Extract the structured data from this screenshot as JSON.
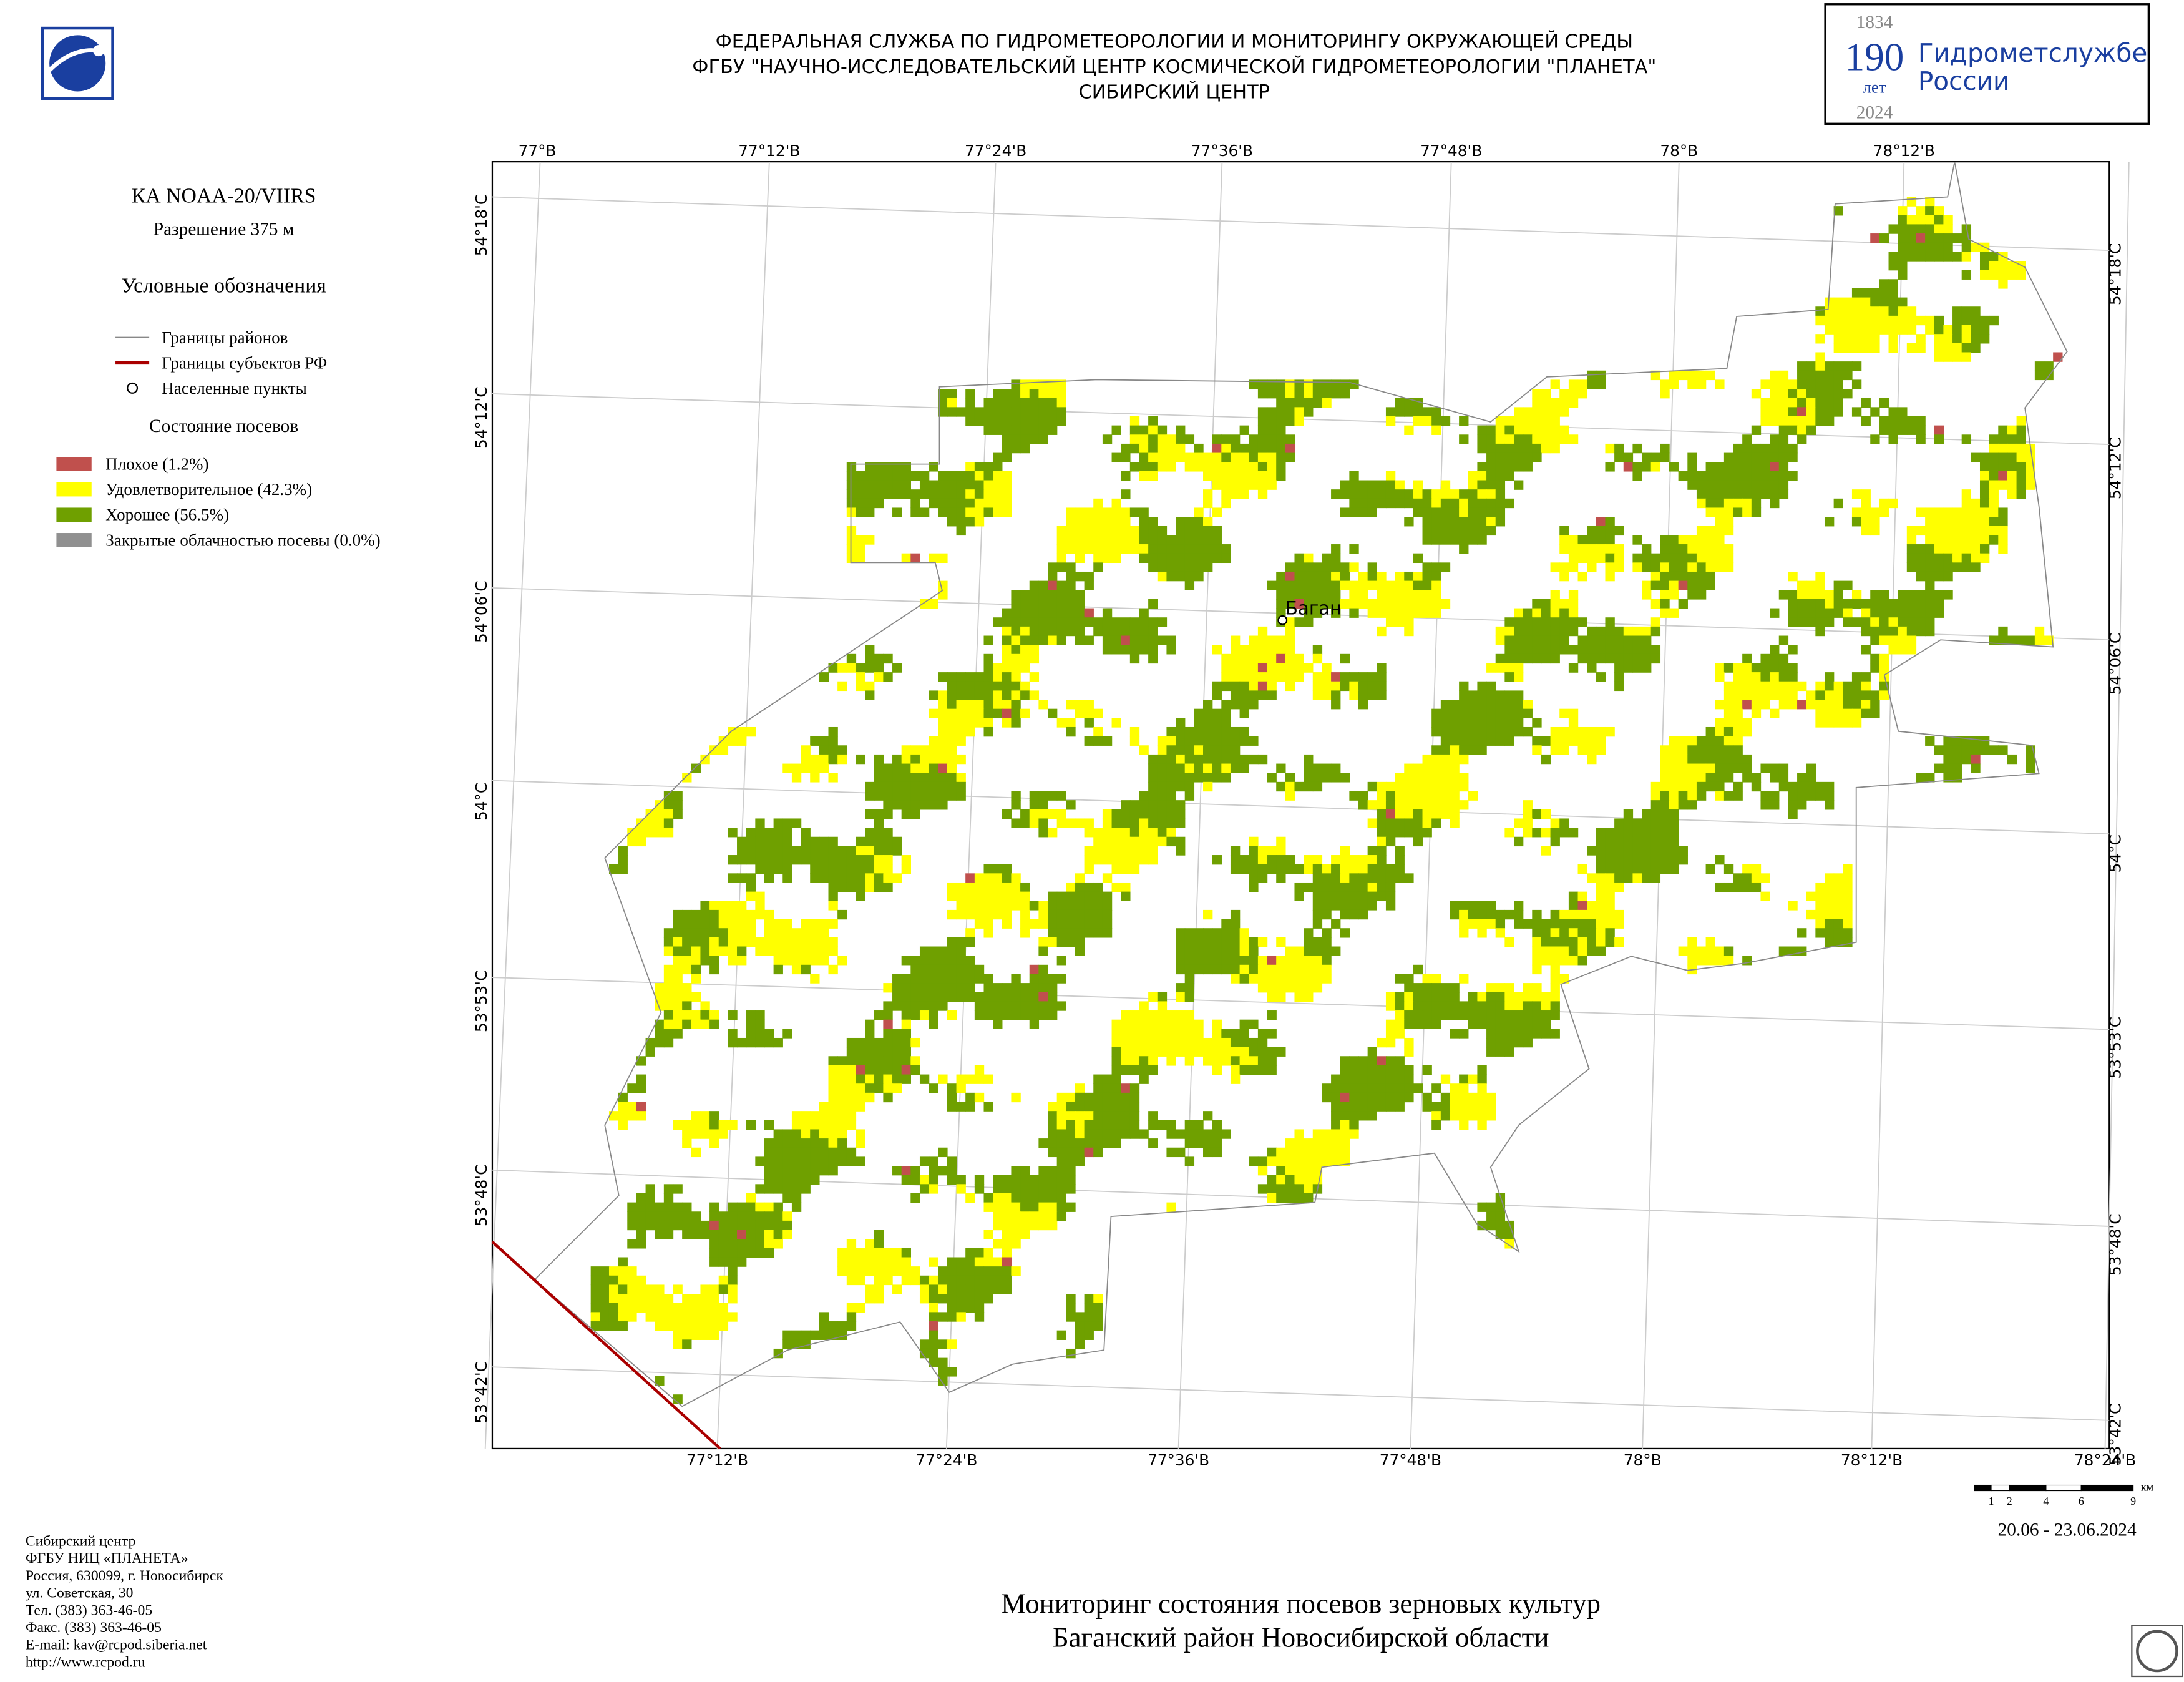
{
  "header": {
    "lines": [
      "ФЕДЕРАЛЬНАЯ СЛУЖБА ПО ГИДРОМЕТЕОРОЛОГИИ И МОНИТОРИНГУ ОКРУЖАЮЩЕЙ СРЕДЫ",
      "ФГБУ \"НАУЧНО-ИССЛЕДОВАТЕЛЬСКИЙ ЦЕНТР КОСМИЧЕСКОЙ ГИДРОМЕТЕОРОЛОГИИ \"ПЛАНЕТА\"",
      "СИБИРСКИЙ ЦЕНТР"
    ]
  },
  "anniversary": {
    "year_start": "1834",
    "number": "190",
    "word": "лет",
    "year_end": "2024",
    "name": [
      "Гидрометслужбе",
      "России"
    ]
  },
  "legend": {
    "satellite": "КА NOAA-20/VIIRS",
    "resolution": "Разрешение 375 м",
    "title": "Условные обозначения",
    "lines": [
      {
        "label": "Границы районов",
        "color": "#888888"
      },
      {
        "label": "Границы субъектов РФ",
        "color": "#aa0000"
      },
      {
        "label": "Населенные пункты",
        "color": "#000000"
      }
    ],
    "crop_title": "Состояние посевов",
    "crops": [
      {
        "label": "Плохое (1.2%)",
        "color": "#c0504d"
      },
      {
        "label": "Удовлетворительное (42.3%)",
        "color": "#ffff00"
      },
      {
        "label": "Хорошее (56.5%)",
        "color": "#6fa000"
      },
      {
        "label": "Закрытые облачностью посевы (0.0%)",
        "color": "#909090"
      }
    ]
  },
  "map": {
    "town": "Баган",
    "top_labels": [
      "77°В",
      "77°12'В",
      "77°24'В",
      "77°36'В",
      "77°48'В",
      "78°В",
      "78°12'В"
    ],
    "bottom_labels": [
      "77°12'В",
      "77°24'В",
      "77°36'В",
      "77°48'В",
      "78°В",
      "78°12'В",
      "78°24'В"
    ],
    "left_labels": [
      "54°18'С",
      "54°12'С",
      "54°06'С",
      "54°С",
      "53°53'С",
      "53°48'С",
      "53°42'С"
    ],
    "right_labels": [
      "54°18'С",
      "54°12'С",
      "54°06'С",
      "54°С",
      "53°53'С",
      "53°48'С",
      "53°42'С"
    ]
  },
  "scale": {
    "ticks": [
      "1",
      "2",
      "4",
      "6",
      "9"
    ],
    "unit": "км"
  },
  "date": "20.06 - 23.06.2024",
  "title": [
    "Мониторинг состояния посевов зерновых культур",
    "Баганский район Новосибирской области"
  ],
  "address": [
    "Сибирский центр",
    "ФГБУ НИЦ «ПЛАНЕТА»",
    "Россия, 630099, г. Новосибирск",
    "ул. Советская, 30",
    "Тел. (383) 363-46-05",
    "Факс. (383) 363-46-05",
    "E-mail: kav@rcpod.siberia.net",
    "http://www.rcpod.ru"
  ]
}
